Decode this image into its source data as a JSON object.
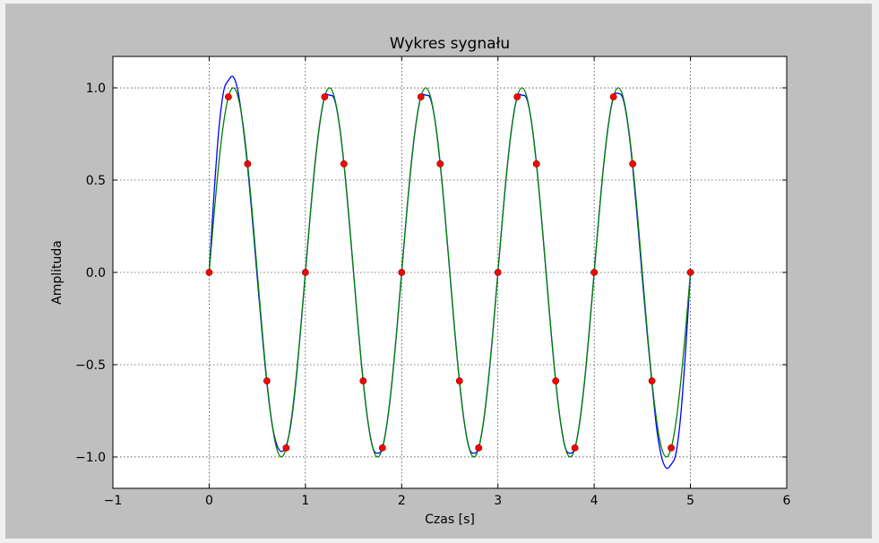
{
  "chart_data": {
    "type": "line",
    "title": "Wykres sygnału",
    "xlabel": "Czas [s]",
    "ylabel": "Amplituda",
    "xlim": [
      -1,
      6
    ],
    "ylim": [
      -1.17,
      1.17
    ],
    "xticks": [
      -1,
      0,
      1,
      2,
      3,
      4,
      5,
      6
    ],
    "xtick_labels": [
      "−1",
      "0",
      "1",
      "2",
      "3",
      "4",
      "5",
      "6"
    ],
    "yticks": [
      -1.0,
      -0.5,
      0.0,
      0.5,
      1.0
    ],
    "ytick_labels": [
      "−1.0",
      "−0.5",
      "0.0",
      "0.5",
      "1.0"
    ],
    "grid": true,
    "series": [
      {
        "style": "line",
        "color": "#0000ff",
        "x": [
          0,
          0.05,
          0.1,
          0.15,
          0.2,
          0.25,
          0.3,
          0.35,
          0.4,
          0.45,
          0.5,
          0.55,
          0.6,
          0.65,
          0.7,
          0.75,
          0.8,
          0.85,
          0.9,
          0.95,
          1.0,
          1.05,
          1.1,
          1.15,
          1.2,
          1.25,
          1.3,
          1.35,
          1.4,
          1.45,
          1.5,
          1.55,
          1.6,
          1.65,
          1.7,
          1.75,
          1.8,
          1.85,
          1.9,
          1.95,
          2.0,
          2.05,
          2.1,
          2.15,
          2.2,
          2.25,
          2.3,
          2.35,
          2.4,
          2.45,
          2.5,
          2.55,
          2.6,
          2.65,
          2.7,
          2.75,
          2.8,
          2.85,
          2.9,
          2.95,
          3.0,
          3.05,
          3.1,
          3.15,
          3.2,
          3.25,
          3.3,
          3.35,
          3.4,
          3.45,
          3.5,
          3.55,
          3.6,
          3.65,
          3.7,
          3.75,
          3.8,
          3.85,
          3.9,
          3.95,
          4.0,
          4.05,
          4.1,
          4.15,
          4.2,
          4.25,
          4.3,
          4.35,
          4.4,
          4.45,
          4.5,
          4.55,
          4.6,
          4.65,
          4.7,
          4.75,
          4.8,
          4.85,
          4.9,
          4.95,
          5.0
        ],
        "y": [
          0.0,
          0.42,
          0.77,
          0.98,
          1.04,
          1.06,
          0.98,
          0.8,
          0.57,
          0.28,
          -0.03,
          -0.33,
          -0.6,
          -0.81,
          -0.93,
          -0.97,
          -0.94,
          -0.82,
          -0.6,
          -0.31,
          0.0,
          0.31,
          0.59,
          0.81,
          0.95,
          0.96,
          0.94,
          0.81,
          0.59,
          0.31,
          0.0,
          -0.31,
          -0.59,
          -0.81,
          -0.95,
          -0.98,
          -0.95,
          -0.81,
          -0.59,
          -0.31,
          0.0,
          0.31,
          0.59,
          0.81,
          0.95,
          0.96,
          0.94,
          0.81,
          0.59,
          0.31,
          0.0,
          -0.31,
          -0.59,
          -0.81,
          -0.95,
          -0.98,
          -0.95,
          -0.81,
          -0.59,
          -0.31,
          0.0,
          0.31,
          0.59,
          0.81,
          0.95,
          0.96,
          0.94,
          0.81,
          0.59,
          0.31,
          0.0,
          -0.31,
          -0.59,
          -0.81,
          -0.95,
          -0.98,
          -0.95,
          -0.81,
          -0.59,
          -0.31,
          0.0,
          0.31,
          0.59,
          0.81,
          0.95,
          0.97,
          0.94,
          0.8,
          0.57,
          0.28,
          -0.03,
          -0.33,
          -0.6,
          -0.85,
          -1.0,
          -1.06,
          -1.04,
          -0.98,
          -0.77,
          -0.42,
          0.0
        ]
      },
      {
        "style": "line",
        "color": "#008000",
        "x": [
          0,
          0.05,
          0.1,
          0.15,
          0.2,
          0.25,
          0.3,
          0.35,
          0.4,
          0.45,
          0.5,
          0.55,
          0.6,
          0.65,
          0.7,
          0.75,
          0.8,
          0.85,
          0.9,
          0.95,
          1.0,
          1.05,
          1.1,
          1.15,
          1.2,
          1.25,
          1.3,
          1.35,
          1.4,
          1.45,
          1.5,
          1.55,
          1.6,
          1.65,
          1.7,
          1.75,
          1.8,
          1.85,
          1.9,
          1.95,
          2.0,
          2.05,
          2.1,
          2.15,
          2.2,
          2.25,
          2.3,
          2.35,
          2.4,
          2.45,
          2.5,
          2.55,
          2.6,
          2.65,
          2.7,
          2.75,
          2.8,
          2.85,
          2.9,
          2.95,
          3.0,
          3.05,
          3.1,
          3.15,
          3.2,
          3.25,
          3.3,
          3.35,
          3.4,
          3.45,
          3.5,
          3.55,
          3.6,
          3.65,
          3.7,
          3.75,
          3.8,
          3.85,
          3.9,
          3.95,
          4.0,
          4.05,
          4.1,
          4.15,
          4.2,
          4.25,
          4.3,
          4.35,
          4.4,
          4.45,
          4.5,
          4.55,
          4.6,
          4.65,
          4.7,
          4.75,
          4.8,
          4.85,
          4.9,
          4.95,
          5.0
        ],
        "y": [
          0.0,
          0.309,
          0.588,
          0.809,
          0.951,
          1.0,
          0.951,
          0.809,
          0.588,
          0.309,
          0.0,
          -0.309,
          -0.588,
          -0.809,
          -0.951,
          -1.0,
          -0.951,
          -0.809,
          -0.588,
          -0.309,
          0.0,
          0.309,
          0.588,
          0.809,
          0.951,
          1.0,
          0.951,
          0.809,
          0.588,
          0.309,
          0.0,
          -0.309,
          -0.588,
          -0.809,
          -0.951,
          -1.0,
          -0.951,
          -0.809,
          -0.588,
          -0.309,
          0.0,
          0.309,
          0.588,
          0.809,
          0.951,
          1.0,
          0.951,
          0.809,
          0.588,
          0.309,
          0.0,
          -0.309,
          -0.588,
          -0.809,
          -0.951,
          -1.0,
          -0.951,
          -0.809,
          -0.588,
          -0.309,
          0.0,
          0.309,
          0.588,
          0.809,
          0.951,
          1.0,
          0.951,
          0.809,
          0.588,
          0.309,
          0.0,
          -0.309,
          -0.588,
          -0.809,
          -0.951,
          -1.0,
          -0.951,
          -0.809,
          -0.588,
          -0.309,
          0.0,
          0.309,
          0.588,
          0.809,
          0.951,
          1.0,
          0.951,
          0.809,
          0.588,
          0.309,
          0.0,
          -0.309,
          -0.588,
          -0.809,
          -0.951,
          -1.0,
          -0.951,
          -0.809,
          -0.588,
          -0.309,
          0.0
        ]
      },
      {
        "style": "scatter",
        "color": "#ff0000",
        "x": [
          0,
          0.2,
          0.4,
          0.6,
          0.8,
          1.0,
          1.2,
          1.4,
          1.6,
          1.8,
          2.0,
          2.2,
          2.4,
          2.6,
          2.8,
          3.0,
          3.2,
          3.4,
          3.6,
          3.8,
          4.0,
          4.2,
          4.4,
          4.6,
          4.8,
          5.0
        ],
        "y": [
          0.0,
          0.951,
          0.588,
          -0.588,
          -0.951,
          0.0,
          0.951,
          0.588,
          -0.588,
          -0.951,
          0.0,
          0.951,
          0.588,
          -0.588,
          -0.951,
          0.0,
          0.951,
          0.588,
          -0.588,
          -0.951,
          0.0,
          0.951,
          0.588,
          -0.588,
          -0.951,
          0.0
        ]
      }
    ]
  }
}
